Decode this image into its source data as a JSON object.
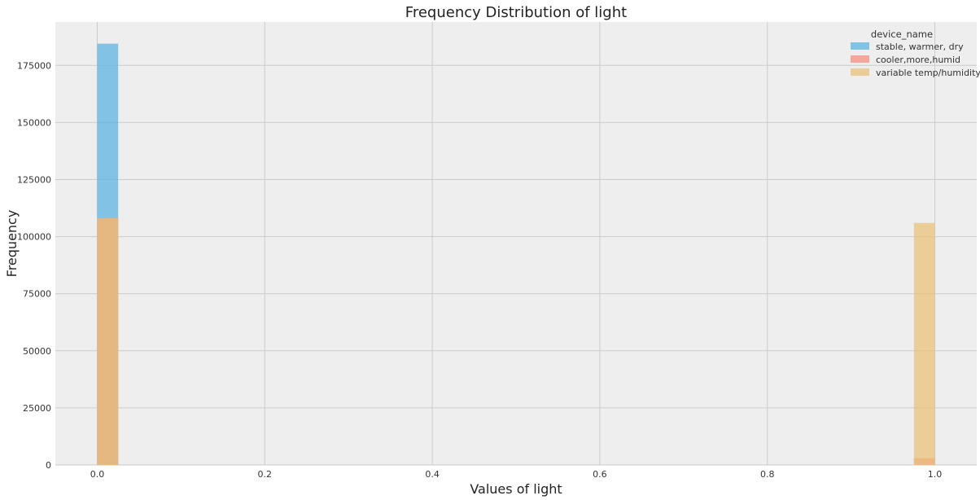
{
  "chart_data": {
    "type": "bar",
    "title": "Frequency Distribution of light",
    "xlabel": "Values of light",
    "ylabel": "Frequency",
    "xlim": [
      -0.05,
      1.05
    ],
    "ylim": [
      0,
      194000
    ],
    "xticks": [
      0.0,
      0.2,
      0.4,
      0.6,
      0.8,
      1.0
    ],
    "xtick_labels": [
      "0.0",
      "0.2",
      "0.4",
      "0.6",
      "0.8",
      "1.0"
    ],
    "yticks": [
      0,
      25000,
      50000,
      75000,
      100000,
      125000,
      150000,
      175000
    ],
    "ytick_labels": [
      "0",
      "25000",
      "50000",
      "75000",
      "100000",
      "125000",
      "150000",
      "175000"
    ],
    "grid": true,
    "background_color": "#eeeeee",
    "bin_width": 0.025,
    "bins": [
      {
        "x0": 0.0,
        "x1": 0.025
      },
      {
        "x0": 0.975,
        "x1": 1.0
      }
    ],
    "legend": {
      "title": "device_name",
      "placement": "top-right"
    },
    "series": [
      {
        "name": "stable, warmer, dry",
        "color": "#5eb3e0",
        "opacity": 0.75,
        "values": [
          184500,
          0
        ]
      },
      {
        "name": "cooler,more,humid",
        "color": "#f78e7d",
        "opacity": 0.75,
        "values": [
          108000,
          3000
        ]
      },
      {
        "name": "variable temp/humidity",
        "color": "#e9c27a",
        "opacity": 0.75,
        "values": [
          108000,
          106000
        ]
      }
    ]
  }
}
